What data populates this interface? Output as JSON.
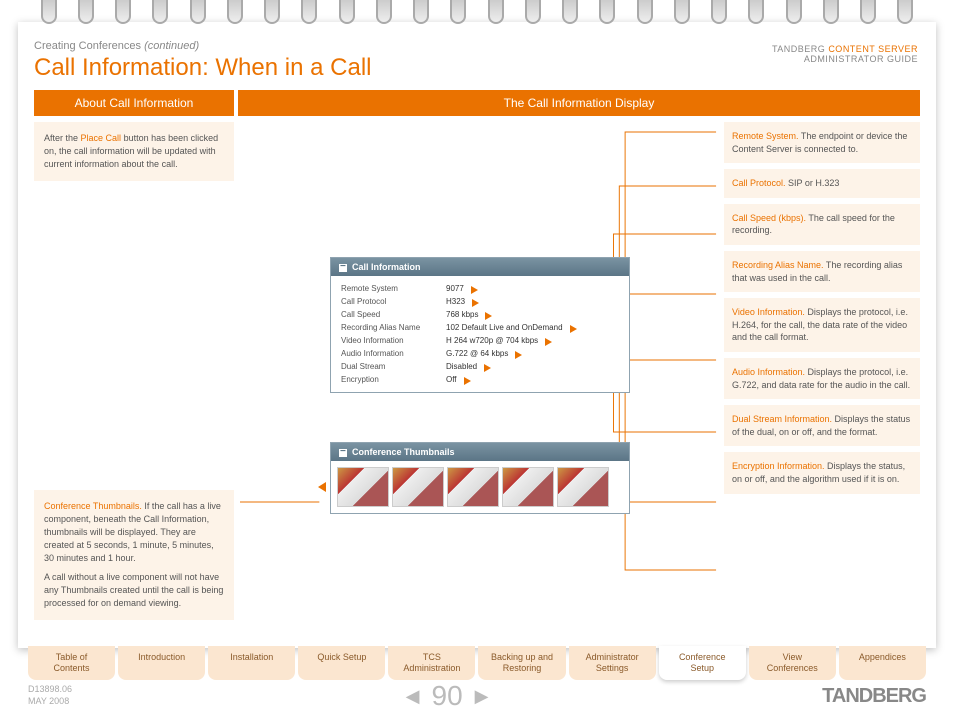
{
  "breadcrumb": {
    "section": "Creating Conferences",
    "note": "(continued)"
  },
  "title": "Call Information: When in a Call",
  "brand": {
    "name": "TANDBERG",
    "product": "CONTENT SERVER",
    "sub": "ADMINISTRATOR GUIDE"
  },
  "headers": {
    "left": "About Call Information",
    "right": "The Call Information Display"
  },
  "about": {
    "prefix": "After the ",
    "hl": "Place Call",
    "suffix": " button has been clicked on, the call information will be updated with current information about the call."
  },
  "thumbnote": {
    "hl": "Conference Thumbnails.",
    "p1": " If the call has a live component, beneath the Call Information, thumbnails will be displayed. They are created at 5 seconds, 1 minute, 5 minutes, 30 minutes and 1 hour.",
    "p2": "A call without a live component will not have any Thumbnails created until the call is being processed for on demand viewing."
  },
  "callinfo": {
    "title": "Call Information",
    "rows": [
      {
        "label": "Remote System",
        "val": "9077"
      },
      {
        "label": "Call Protocol",
        "val": "H323"
      },
      {
        "label": "Call Speed",
        "val": "768 kbps"
      },
      {
        "label": "Recording Alias Name",
        "val": "102 Default Live and OnDemand"
      },
      {
        "label": "Video Information",
        "val": "H 264 w720p @ 704 kbps"
      },
      {
        "label": "Audio Information",
        "val": "G.722 @ 64 kbps"
      },
      {
        "label": "Dual Stream",
        "val": "Disabled"
      },
      {
        "label": "Encryption",
        "val": "Off"
      }
    ]
  },
  "confthumbs": {
    "title": "Conference Thumbnails"
  },
  "callouts": [
    {
      "hl": "Remote System.",
      "txt": " The endpoint or device the Content Server is connected to."
    },
    {
      "hl": "Call Protocol.",
      "txt": " SIP or H.323"
    },
    {
      "hl": "Call Speed (kbps).",
      "txt": " The call speed for the recording."
    },
    {
      "hl": "Recording Alias Name.",
      "txt": " The recording alias that was used in the call."
    },
    {
      "hl": "Video Information.",
      "txt": " Displays the protocol, i.e. H.264,  for the call, the data rate of the video and the call format."
    },
    {
      "hl": "Audio Information.",
      "txt": " Displays the protocol, i.e. G.722, and data rate for the audio in the call."
    },
    {
      "hl": "Dual Stream Information.",
      "txt": " Displays the status of the dual, on or off, and the format."
    },
    {
      "hl": "Encryption Information.",
      "txt": " Displays the status, on or off, and the algorithm used if it is on."
    }
  ],
  "tabs": [
    {
      "l1": "Table of",
      "l2": "Contents"
    },
    {
      "l1": "Introduction",
      "l2": ""
    },
    {
      "l1": "Installation",
      "l2": ""
    },
    {
      "l1": "Quick Setup",
      "l2": ""
    },
    {
      "l1": "TCS",
      "l2": "Administration"
    },
    {
      "l1": "Backing up and",
      "l2": "Restoring"
    },
    {
      "l1": "Administrator",
      "l2": "Settings"
    },
    {
      "l1": "Conference",
      "l2": "Setup"
    },
    {
      "l1": "View",
      "l2": "Conferences"
    },
    {
      "l1": "Appendices",
      "l2": ""
    }
  ],
  "active_tab": 7,
  "doc": {
    "id": "D13898.06",
    "date": "MAY 2008"
  },
  "page": "90",
  "logo": "TANDBERG",
  "colors": {
    "accent": "#ea7200",
    "box": "#fdf3e8"
  }
}
